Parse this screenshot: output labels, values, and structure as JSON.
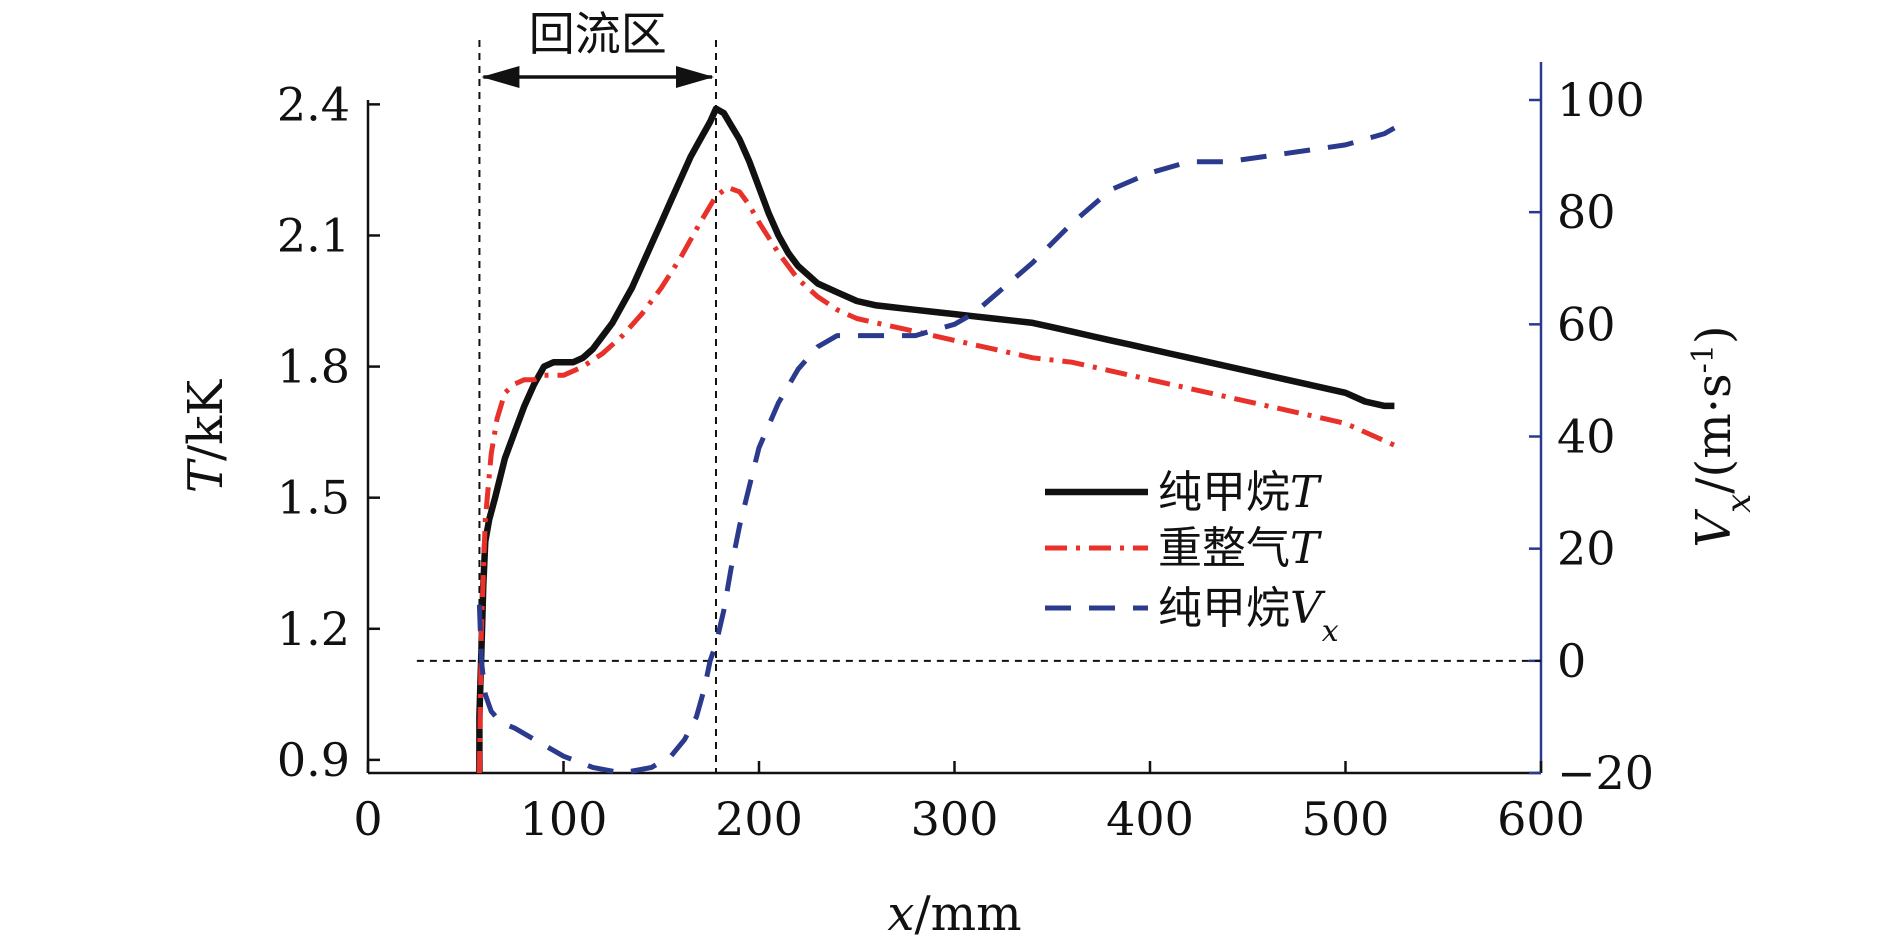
{
  "chart_data": {
    "type": "line",
    "title": "",
    "x_axis": {
      "label_var": "x",
      "label_unit": "/mm",
      "range": [
        0,
        600
      ],
      "ticks": [
        0,
        100,
        200,
        300,
        400,
        500,
        600
      ]
    },
    "y_left": {
      "label_var": "T",
      "label_unit": "/kK",
      "range": [
        0.87,
        2.41
      ],
      "ticks": [
        0.9,
        1.2,
        1.5,
        1.8,
        2.1,
        2.4
      ],
      "tick_labels": [
        "0.9",
        "1.2",
        "1.5",
        "1.8",
        "2.1",
        "2.4"
      ]
    },
    "y_right": {
      "label_var": "V",
      "label_sub": "x",
      "label_unit": "/(m·s",
      "label_sup": "-1",
      "label_close": ")",
      "range": [
        -20,
        100
      ],
      "ticks": [
        -20,
        0,
        20,
        40,
        60,
        80,
        100
      ],
      "tick_labels": [
        "−20",
        "0",
        "20",
        "40",
        "60",
        "80",
        "100"
      ],
      "color": "#2b3a8c"
    },
    "annotations": {
      "region_label": "回流区",
      "region_x": [
        57,
        178
      ],
      "zero_line_value": 0
    },
    "legend": {
      "placement": "right-center",
      "entries": [
        {
          "text": "纯甲烷",
          "var": "T",
          "sub": ""
        },
        {
          "text": "重整气",
          "var": "T",
          "sub": ""
        },
        {
          "text": "纯甲烷",
          "var": "V",
          "sub": "x"
        }
      ]
    },
    "series": [
      {
        "name": "纯甲烷T",
        "axis": "left",
        "color": "#111111",
        "style": "solid",
        "x": [
          57,
          57,
          58,
          59,
          60,
          62,
          65,
          70,
          75,
          80,
          85,
          90,
          95,
          100,
          105,
          110,
          115,
          120,
          125,
          130,
          135,
          140,
          145,
          150,
          155,
          160,
          165,
          170,
          175,
          178,
          182,
          186,
          190,
          195,
          200,
          205,
          210,
          215,
          220,
          230,
          240,
          250,
          260,
          270,
          280,
          290,
          300,
          310,
          320,
          330,
          340,
          350,
          360,
          370,
          380,
          390,
          400,
          410,
          420,
          430,
          440,
          450,
          460,
          470,
          480,
          490,
          500,
          510,
          520,
          525
        ],
        "y": [
          0.87,
          1.0,
          1.15,
          1.3,
          1.4,
          1.45,
          1.5,
          1.59,
          1.65,
          1.71,
          1.76,
          1.8,
          1.81,
          1.81,
          1.81,
          1.82,
          1.84,
          1.87,
          1.9,
          1.94,
          1.98,
          2.03,
          2.08,
          2.13,
          2.18,
          2.23,
          2.28,
          2.32,
          2.36,
          2.39,
          2.38,
          2.35,
          2.32,
          2.27,
          2.21,
          2.15,
          2.1,
          2.06,
          2.03,
          1.99,
          1.97,
          1.95,
          1.94,
          1.935,
          1.93,
          1.925,
          1.92,
          1.915,
          1.91,
          1.905,
          1.9,
          1.89,
          1.88,
          1.87,
          1.86,
          1.85,
          1.84,
          1.83,
          1.82,
          1.81,
          1.8,
          1.79,
          1.78,
          1.77,
          1.76,
          1.75,
          1.74,
          1.72,
          1.71,
          1.71
        ]
      },
      {
        "name": "重整气T",
        "axis": "left",
        "color": "#e8312a",
        "style": "dashdot",
        "x": [
          57,
          58,
          60,
          63,
          66,
          70,
          75,
          80,
          85,
          90,
          95,
          100,
          110,
          120,
          130,
          140,
          150,
          160,
          170,
          178,
          184,
          190,
          195,
          200,
          210,
          220,
          230,
          240,
          250,
          260,
          270,
          280,
          300,
          320,
          340,
          360,
          380,
          400,
          420,
          440,
          460,
          480,
          500,
          510,
          520,
          525
        ],
        "y": [
          0.87,
          1.2,
          1.45,
          1.6,
          1.68,
          1.74,
          1.76,
          1.77,
          1.77,
          1.78,
          1.78,
          1.78,
          1.8,
          1.83,
          1.87,
          1.92,
          1.98,
          2.05,
          2.13,
          2.19,
          2.21,
          2.2,
          2.17,
          2.13,
          2.06,
          2.0,
          1.96,
          1.93,
          1.91,
          1.9,
          1.89,
          1.88,
          1.86,
          1.84,
          1.82,
          1.81,
          1.79,
          1.77,
          1.75,
          1.73,
          1.71,
          1.69,
          1.67,
          1.65,
          1.63,
          1.62
        ]
      },
      {
        "name": "纯甲烷Vx",
        "axis": "right",
        "color": "#2b3a8c",
        "style": "dashed",
        "x": [
          57,
          58,
          60,
          63,
          68,
          75,
          85,
          100,
          115,
          130,
          145,
          155,
          162,
          168,
          172,
          175,
          178,
          182,
          186,
          190,
          195,
          200,
          210,
          220,
          230,
          240,
          250,
          260,
          270,
          280,
          290,
          300,
          310,
          320,
          340,
          360,
          380,
          400,
          420,
          440,
          460,
          480,
          500,
          520,
          525
        ],
        "y": [
          10,
          0,
          -6,
          -9,
          -11,
          -12,
          -14,
          -17,
          -19,
          -20,
          -19,
          -17,
          -14,
          -10,
          -5,
          0,
          3,
          9,
          17,
          24,
          31,
          38,
          46,
          52,
          56,
          58,
          58,
          58,
          58,
          58,
          59,
          60,
          62,
          65,
          71,
          78,
          84,
          87,
          89,
          89,
          90,
          91,
          92,
          94,
          95
        ]
      }
    ]
  }
}
